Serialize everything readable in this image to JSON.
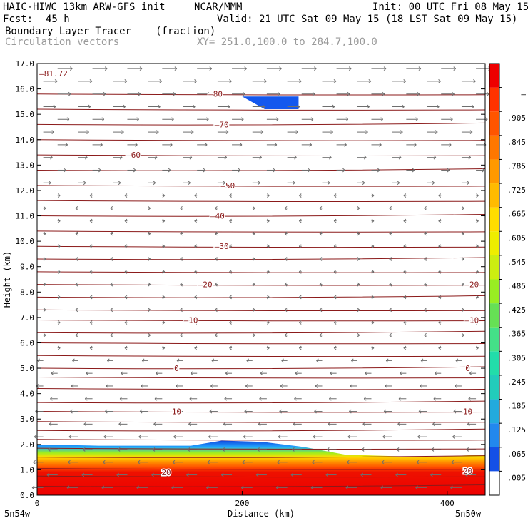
{
  "header": {
    "model": "HAIC-HIWC 13km ARW-GFS init",
    "org": "NCAR/MMM",
    "init": "Init: 00 UTC Fri 08 May 15",
    "fcst_label": "Fcst:",
    "fcst_value": "45 h",
    "valid": "Valid: 21 UTC Sat 09 May 15 (18 LST Sat 09 May 15)",
    "field": "Boundary Layer Tracer",
    "field_units": "(fraction)",
    "overlay": "Circulation vectors",
    "xy": "XY= 251.0,100.0 to 284.7,100.0"
  },
  "chart_data": {
    "type": "heatmap",
    "xlabel": "Distance (km)",
    "ylabel": "Height (km)",
    "xlim": [
      0,
      437
    ],
    "ylim": [
      0,
      17
    ],
    "x_ticks": [
      "0",
      "200",
      "400"
    ],
    "y_ticks": [
      "0.0",
      "1.0",
      "2.0",
      "3.0",
      "4.0",
      "5.0",
      "6.0",
      "7.0",
      "8.0",
      "9.0",
      "10.0",
      "11.0",
      "12.0",
      "13.0",
      "14.0",
      "15.0",
      "16.0",
      "17.0"
    ],
    "x_endpoint_labels": {
      "left": "5n54w",
      "right": "5n50w"
    },
    "colorbar_labels": [
      ".005",
      ".065",
      ".125",
      ".185",
      ".245",
      ".305",
      ".365",
      ".425",
      ".485",
      ".545",
      ".605",
      ".665",
      ".725",
      ".785",
      ".845",
      ".905",
      "–"
    ],
    "colorbar_colors": [
      "#ffffff",
      "#1450e6",
      "#2288ee",
      "#22aadd",
      "#22ccbb",
      "#22ddaa",
      "#44e088",
      "#66e055",
      "#99ee22",
      "#ccee11",
      "#eeee00",
      "#ffdd00",
      "#ffbb00",
      "#ff9900",
      "#ff7700",
      "#ff5500",
      "#ff3300",
      "#ee0000"
    ],
    "tracer_top_km": [
      [
        0,
        2.0
      ],
      [
        60,
        1.95
      ],
      [
        150,
        1.95
      ],
      [
        180,
        2.15
      ],
      [
        220,
        2.1
      ],
      [
        260,
        1.9
      ],
      [
        300,
        1.6
      ],
      [
        340,
        1.55
      ],
      [
        380,
        1.5
      ],
      [
        437,
        1.6
      ]
    ],
    "upper_patch": {
      "x_range": [
        200,
        255
      ],
      "z_range": [
        15.2,
        15.7
      ]
    },
    "temperature_contours": [
      {
        "label": "20",
        "x": 126,
        "z": 0.9
      },
      {
        "label": "20",
        "x": 420,
        "z": 0.95
      },
      {
        "label": "10",
        "x": 136,
        "z": 3.3
      },
      {
        "label": "10",
        "x": 420,
        "z": 3.3
      },
      {
        "label": "0",
        "x": 136,
        "z": 5.0
      },
      {
        "label": "0",
        "x": 420,
        "z": 5.0
      },
      {
        "label": "–10",
        "x": 150,
        "z": 6.9
      },
      {
        "label": "–10",
        "x": 424,
        "z": 6.9
      },
      {
        "label": "–20",
        "x": 164,
        "z": 8.3
      },
      {
        "label": "–20",
        "x": 424,
        "z": 8.3
      },
      {
        "label": "–30",
        "x": 180,
        "z": 9.8
      },
      {
        "label": "–40",
        "x": 176,
        "z": 11.0
      },
      {
        "label": "–50",
        "x": 186,
        "z": 12.2
      },
      {
        "label": "–60",
        "x": 94,
        "z": 13.4
      },
      {
        "label": "–70",
        "x": 180,
        "z": 14.6
      },
      {
        "label": "–80",
        "x": 174,
        "z": 15.8
      },
      {
        "label": "–81.72",
        "x": 16,
        "z": 16.6
      }
    ],
    "contour_levels_km": [
      0.35,
      0.75,
      1.05,
      1.5,
      1.85,
      2.2,
      2.55,
      2.9,
      3.3,
      3.65,
      4.2,
      4.65,
      5.0,
      5.5,
      6.0,
      6.4,
      6.9,
      7.3,
      7.8,
      8.3,
      8.8,
      9.3,
      9.8,
      10.4,
      11.0,
      11.6,
      12.2,
      12.8,
      13.4,
      14.0,
      14.6,
      15.2,
      15.8
    ]
  }
}
